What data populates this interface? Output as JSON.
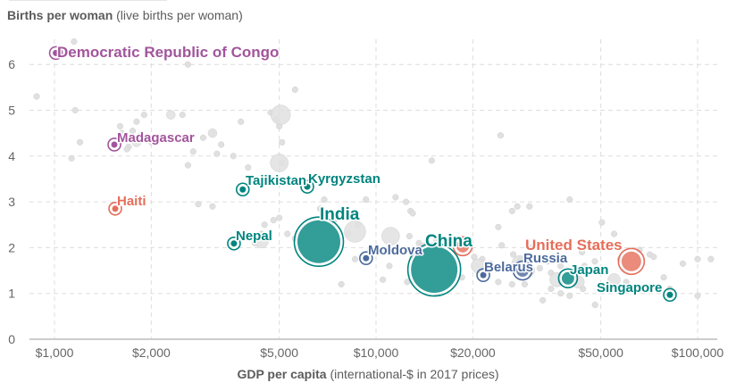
{
  "chart_data": {
    "type": "scatter",
    "title": "",
    "ylabel_bold": "Births per woman",
    "ylabel_rest": "(live births per woman)",
    "xlabel_bold": "GDP per capita",
    "xlabel_rest": "(international-$ in 2017 prices)",
    "xscale": "log",
    "xlim": [
      850,
      125000
    ],
    "ylim": [
      0,
      6.6
    ],
    "x_ticks": [
      {
        "value": 1000,
        "label": "$1,000"
      },
      {
        "value": 2000,
        "label": "$2,000"
      },
      {
        "value": 5000,
        "label": "$5,000"
      },
      {
        "value": 10000,
        "label": "$10,000"
      },
      {
        "value": 20000,
        "label": "$20,000"
      },
      {
        "value": 50000,
        "label": "$50,000"
      },
      {
        "value": 100000,
        "label": "$100,000"
      }
    ],
    "y_ticks": [
      0,
      1,
      2,
      3,
      4,
      5,
      6
    ],
    "grid": true,
    "colors": {
      "purple": "#a2559c",
      "red": "#e56e5a",
      "teal": "#00847e",
      "blue": "#4c6a9c",
      "gray": "#dcdcdc"
    },
    "highlighted": [
      {
        "name": "Democratic Republic of Congo",
        "gdp": 1010,
        "births": 6.25,
        "color": "purple",
        "size": "small"
      },
      {
        "name": "Madagascar",
        "gdp": 1535,
        "births": 4.25,
        "color": "purple",
        "size": "small"
      },
      {
        "name": "Haiti",
        "gdp": 1545,
        "births": 2.85,
        "color": "red",
        "size": "small"
      },
      {
        "name": "Tajikistan",
        "gdp": 3850,
        "births": 3.27,
        "color": "teal",
        "size": "small"
      },
      {
        "name": "Kyrgyzstan",
        "gdp": 6110,
        "births": 3.33,
        "color": "teal",
        "size": "small"
      },
      {
        "name": "Nepal",
        "gdp": 3615,
        "births": 2.09,
        "color": "teal",
        "size": "small"
      },
      {
        "name": "India",
        "gdp": 6640,
        "births": 2.13,
        "color": "teal",
        "size": "large"
      },
      {
        "name": "Moldova",
        "gdp": 9310,
        "births": 1.77,
        "color": "blue",
        "size": "small"
      },
      {
        "name": "China",
        "gdp": 15170,
        "births": 1.52,
        "color": "teal",
        "size": "xlarge"
      },
      {
        "name": "",
        "gdp": 18600,
        "births": 2.03,
        "color": "red",
        "size": "medium"
      },
      {
        "name": "Belarus",
        "gdp": 21550,
        "births": 1.4,
        "color": "blue",
        "size": "small"
      },
      {
        "name": "Russia",
        "gdp": 28560,
        "births": 1.5,
        "color": "blue",
        "size": "medium"
      },
      {
        "name": "Japan",
        "gdp": 39530,
        "births": 1.33,
        "color": "teal",
        "size": "medium"
      },
      {
        "name": "United States",
        "gdp": 62230,
        "births": 1.7,
        "color": "red",
        "size": "mediumlarge"
      },
      {
        "name": "Singapore",
        "gdp": 82000,
        "births": 0.97,
        "color": "teal",
        "size": "small"
      }
    ],
    "background_points": [
      [
        880,
        5.3
      ],
      [
        1150,
        6.5
      ],
      [
        1160,
        5.0
      ],
      [
        1200,
        4.3
      ],
      [
        1130,
        3.95
      ],
      [
        1600,
        4.65
      ],
      [
        1620,
        4.5
      ],
      [
        1750,
        4.55
      ],
      [
        1800,
        4.75
      ],
      [
        1900,
        4.9
      ],
      [
        2000,
        4.3
      ],
      [
        1850,
        4.45
      ],
      [
        1700,
        4.2
      ],
      [
        1680,
        4.15
      ],
      [
        2600,
        6.0
      ],
      [
        2500,
        4.9
      ],
      [
        2700,
        4.1
      ],
      [
        2900,
        4.4
      ],
      [
        3100,
        4.5
      ],
      [
        3300,
        4.25
      ],
      [
        3200,
        4.05
      ],
      [
        3600,
        4.0
      ],
      [
        3800,
        4.75
      ],
      [
        4700,
        4.95
      ],
      [
        4900,
        4.8
      ],
      [
        5000,
        4.65
      ],
      [
        5100,
        4.3
      ],
      [
        5100,
        3.85
      ],
      [
        4000,
        3.75
      ],
      [
        2600,
        3.8
      ],
      [
        2800,
        2.95
      ],
      [
        3100,
        2.9
      ],
      [
        5600,
        5.45
      ],
      [
        5800,
        3.4
      ],
      [
        6900,
        3.05
      ],
      [
        7200,
        2.5
      ],
      [
        8800,
        2.5
      ],
      [
        11500,
        3.1
      ],
      [
        12400,
        3.0
      ],
      [
        12800,
        2.8
      ],
      [
        13000,
        2.75
      ],
      [
        14900,
        3.9
      ],
      [
        15400,
        2.15
      ],
      [
        12700,
        2.25
      ],
      [
        11600,
        1.95
      ],
      [
        13600,
        2.1
      ],
      [
        15800,
        1.8
      ],
      [
        17300,
        2.15
      ],
      [
        24400,
        4.45
      ],
      [
        24000,
        2.45
      ],
      [
        27500,
        2.9
      ],
      [
        30000,
        2.9
      ],
      [
        40000,
        3.05
      ],
      [
        26500,
        2.8
      ],
      [
        20200,
        1.8
      ],
      [
        21400,
        1.75
      ],
      [
        22700,
        1.65
      ],
      [
        24600,
        2.05
      ],
      [
        26700,
        1.85
      ],
      [
        28200,
        1.75
      ],
      [
        30500,
        2.0
      ],
      [
        32300,
        1.55
      ],
      [
        34200,
        1.7
      ],
      [
        35000,
        1.45
      ],
      [
        37500,
        1.6
      ],
      [
        43700,
        1.9
      ],
      [
        44500,
        1.6
      ],
      [
        47900,
        1.7
      ],
      [
        50400,
        2.55
      ],
      [
        55000,
        2.3
      ],
      [
        57500,
        1.75
      ],
      [
        59500,
        1.55
      ],
      [
        71000,
        1.85
      ],
      [
        73000,
        1.8
      ],
      [
        78500,
        1.35
      ],
      [
        90000,
        1.65
      ],
      [
        100000,
        1.75
      ],
      [
        110000,
        1.75
      ],
      [
        60000,
        1.5
      ],
      [
        44000,
        1.1
      ],
      [
        40000,
        0.95
      ],
      [
        48000,
        0.75
      ],
      [
        33000,
        0.85
      ],
      [
        35000,
        1.1
      ],
      [
        29000,
        1.2
      ],
      [
        37500,
        1.0
      ],
      [
        26500,
        1.2
      ],
      [
        24000,
        1.25
      ],
      [
        18500,
        1.35
      ],
      [
        17000,
        1.25
      ],
      [
        16200,
        1.55
      ],
      [
        14500,
        1.7
      ],
      [
        13000,
        1.4
      ],
      [
        11000,
        1.6
      ],
      [
        10600,
        1.9
      ],
      [
        9600,
        1.95
      ],
      [
        8600,
        1.75
      ],
      [
        7800,
        1.2
      ],
      [
        8200,
        2.3
      ],
      [
        7400,
        2.6
      ],
      [
        6300,
        2.45
      ],
      [
        5600,
        2.2
      ],
      [
        5300,
        2.3
      ],
      [
        5000,
        2.65
      ],
      [
        4500,
        2.5
      ],
      [
        4200,
        2.1
      ],
      [
        4400,
        2.3
      ],
      [
        4800,
        2.6
      ],
      [
        6700,
        2.85
      ],
      [
        9300,
        3.05
      ],
      [
        10500,
        1.3
      ],
      [
        12500,
        1.25
      ],
      [
        15500,
        1.0
      ],
      [
        16500,
        1.45
      ],
      [
        60000,
        1.25
      ],
      [
        66000,
        1.95
      ],
      [
        82000,
        1.1
      ],
      [
        100000,
        0.95
      ]
    ],
    "background_big": [
      [
        5050,
        4.9,
        11
      ],
      [
        5000,
        3.85,
        10
      ],
      [
        11100,
        2.25,
        10
      ],
      [
        14100,
        1.95,
        8
      ],
      [
        8600,
        2.35,
        12
      ],
      [
        20800,
        1.6,
        8
      ],
      [
        28000,
        1.65,
        9
      ],
      [
        36500,
        1.3,
        8
      ],
      [
        42500,
        1.25,
        7
      ],
      [
        55000,
        1.3,
        7
      ],
      [
        6050,
        2.25,
        9
      ],
      [
        4400,
        2.15,
        8
      ],
      [
        13500,
        1.75,
        7
      ],
      [
        15500,
        1.65,
        6
      ],
      [
        30000,
        1.5,
        6
      ],
      [
        2300,
        4.9,
        5
      ],
      [
        3100,
        4.5,
        5
      ],
      [
        1800,
        4.3,
        5
      ]
    ]
  }
}
